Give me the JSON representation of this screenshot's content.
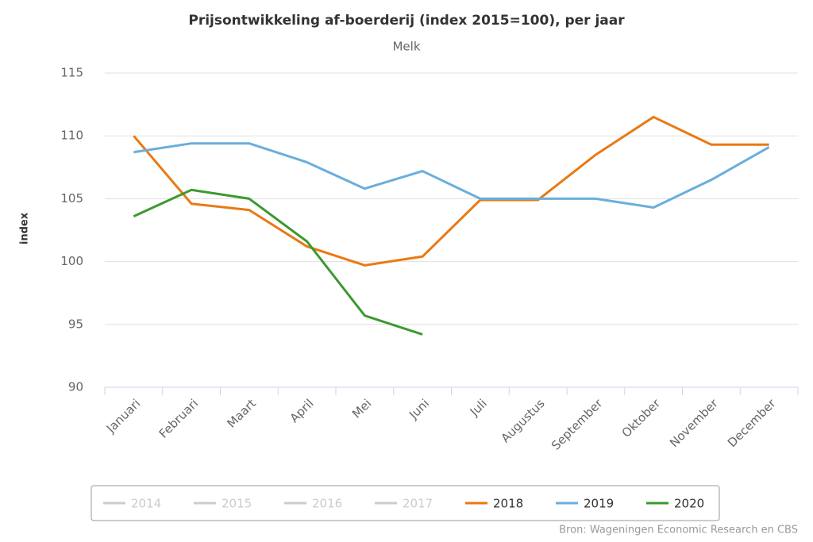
{
  "chart_data": {
    "type": "line",
    "title": "Prijsontwikkeling af-boerderij (index 2015=100), per jaar",
    "subtitle": "Melk",
    "y_label": "index",
    "source": "Bron: Wageningen Economic Research en CBS",
    "categories": [
      "Januari",
      "Februari",
      "Maart",
      "April",
      "Mei",
      "Juni",
      "Juli",
      "Augustus",
      "September",
      "Oktober",
      "November",
      "December"
    ],
    "series": [
      {
        "name": "2014",
        "color": "#cccccc",
        "hidden": true,
        "values": [
          null,
          null,
          null,
          null,
          null,
          null,
          null,
          null,
          null,
          null,
          null,
          null
        ]
      },
      {
        "name": "2015",
        "color": "#cccccc",
        "hidden": true,
        "values": [
          null,
          null,
          null,
          null,
          null,
          null,
          null,
          null,
          null,
          null,
          null,
          null
        ]
      },
      {
        "name": "2016",
        "color": "#cccccc",
        "hidden": true,
        "values": [
          null,
          null,
          null,
          null,
          null,
          null,
          null,
          null,
          null,
          null,
          null,
          null
        ]
      },
      {
        "name": "2017",
        "color": "#cccccc",
        "hidden": true,
        "values": [
          null,
          null,
          null,
          null,
          null,
          null,
          null,
          null,
          null,
          null,
          null,
          null
        ]
      },
      {
        "name": "2018",
        "color": "#e87a14",
        "values": [
          110.0,
          104.6,
          104.1,
          101.2,
          99.7,
          100.4,
          104.9,
          104.9,
          108.5,
          111.5,
          109.3,
          109.3
        ]
      },
      {
        "name": "2019",
        "color": "#6aaedc",
        "values": [
          108.7,
          109.4,
          109.4,
          107.9,
          105.8,
          107.2,
          105.0,
          105.0,
          105.0,
          104.3,
          106.5,
          109.1
        ]
      },
      {
        "name": "2020",
        "color": "#3b9a2e",
        "values": [
          103.6,
          105.7,
          105.0,
          101.6,
          95.7,
          94.2,
          null,
          null,
          null,
          null,
          null,
          null
        ]
      }
    ],
    "ylim": [
      90,
      115
    ],
    "yticks": [
      90,
      95,
      100,
      105,
      110,
      115
    ],
    "grid": true,
    "legend": "bottom"
  }
}
